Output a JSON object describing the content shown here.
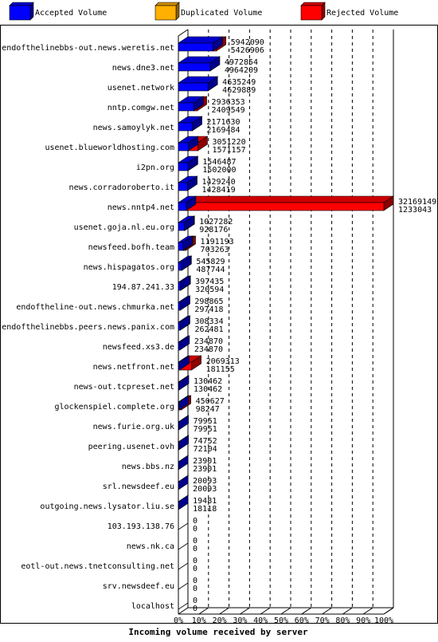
{
  "chart_data": {
    "type": "bar",
    "xlabel": "Incoming volume received by server",
    "legend": [
      {
        "name": "Accepted Volume",
        "color": "#0000ff"
      },
      {
        "name": "Duplicated Volume",
        "color": "#ffb000"
      },
      {
        "name": "Rejected Volume",
        "color": "#ff0000"
      }
    ],
    "x_ticks": [
      "0%",
      "10%",
      "20%",
      "30%",
      "40%",
      "50%",
      "60%",
      "70%",
      "80%",
      "90%",
      "100%"
    ],
    "xlim": [
      0,
      100
    ],
    "max_total": 32169149,
    "rows": [
      {
        "server": "endofthelinebbs-out.news.weretis.net",
        "total": 5942090,
        "accepted": 5426906,
        "duplicated": 0
      },
      {
        "server": "news.dne3.net",
        "total": 4972854,
        "accepted": 4964209,
        "duplicated": 0
      },
      {
        "server": "usenet.network",
        "total": 4635249,
        "accepted": 4629889,
        "duplicated": 0
      },
      {
        "server": "nntp.comgw.net",
        "total": 2936353,
        "accepted": 2409549,
        "duplicated": 0
      },
      {
        "server": "news.samoylyk.net",
        "total": 2171630,
        "accepted": 2169484,
        "duplicated": 0
      },
      {
        "server": "usenet.blueworldhosting.com",
        "total": 3051220,
        "accepted": 1571157,
        "duplicated": 0
      },
      {
        "server": "i2pn.org",
        "total": 1546487,
        "accepted": 1502000,
        "duplicated": 0
      },
      {
        "server": "news.corradoroberto.it",
        "total": 1429240,
        "accepted": 1428419,
        "duplicated": 0
      },
      {
        "server": "news.nntp4.net",
        "total": 32169149,
        "accepted": 1233043,
        "duplicated": 0
      },
      {
        "server": "usenet.goja.nl.eu.org",
        "total": 1027282,
        "accepted": 928176,
        "duplicated": 20000
      },
      {
        "server": "newsfeed.bofh.team",
        "total": 1191193,
        "accepted": 703263,
        "duplicated": 110000
      },
      {
        "server": "news.hispagatos.org",
        "total": 545829,
        "accepted": 487744,
        "duplicated": 0
      },
      {
        "server": "194.87.241.33",
        "total": 397435,
        "accepted": 320594,
        "duplicated": 0
      },
      {
        "server": "endoftheline-out.news.chmurka.net",
        "total": 298865,
        "accepted": 297418,
        "duplicated": 0
      },
      {
        "server": "endofthelinebbs.peers.news.panix.com",
        "total": 308334,
        "accepted": 262481,
        "duplicated": 0
      },
      {
        "server": "newsfeed.xs3.de",
        "total": 234870,
        "accepted": 234870,
        "duplicated": 0
      },
      {
        "server": "news.netfront.net",
        "total": 2069313,
        "accepted": 181155,
        "duplicated": 0
      },
      {
        "server": "news-out.tcpreset.net",
        "total": 130462,
        "accepted": 130462,
        "duplicated": 0
      },
      {
        "server": "glockenspiel.complete.org",
        "total": 450627,
        "accepted": 98247,
        "duplicated": 0
      },
      {
        "server": "news.furie.org.uk",
        "total": 79951,
        "accepted": 79951,
        "duplicated": 0
      },
      {
        "server": "peering.usenet.ovh",
        "total": 74752,
        "accepted": 72104,
        "duplicated": 0
      },
      {
        "server": "news.bbs.nz",
        "total": 23901,
        "accepted": 23901,
        "duplicated": 0
      },
      {
        "server": "srl.newsdeef.eu",
        "total": 20093,
        "accepted": 20093,
        "duplicated": 0
      },
      {
        "server": "outgoing.news.lysator.liu.se",
        "total": 19481,
        "accepted": 18118,
        "duplicated": 0
      },
      {
        "server": "103.193.138.76",
        "total": 0,
        "accepted": 0,
        "duplicated": 0
      },
      {
        "server": "news.nk.ca",
        "total": 0,
        "accepted": 0,
        "duplicated": 0
      },
      {
        "server": "eotl-out.news.tnetconsulting.net",
        "total": 0,
        "accepted": 0,
        "duplicated": 0
      },
      {
        "server": "srv.newsdeef.eu",
        "total": 0,
        "accepted": 0,
        "duplicated": 0
      },
      {
        "server": "localhost",
        "total": 0,
        "accepted": 0,
        "duplicated": 0
      }
    ]
  }
}
